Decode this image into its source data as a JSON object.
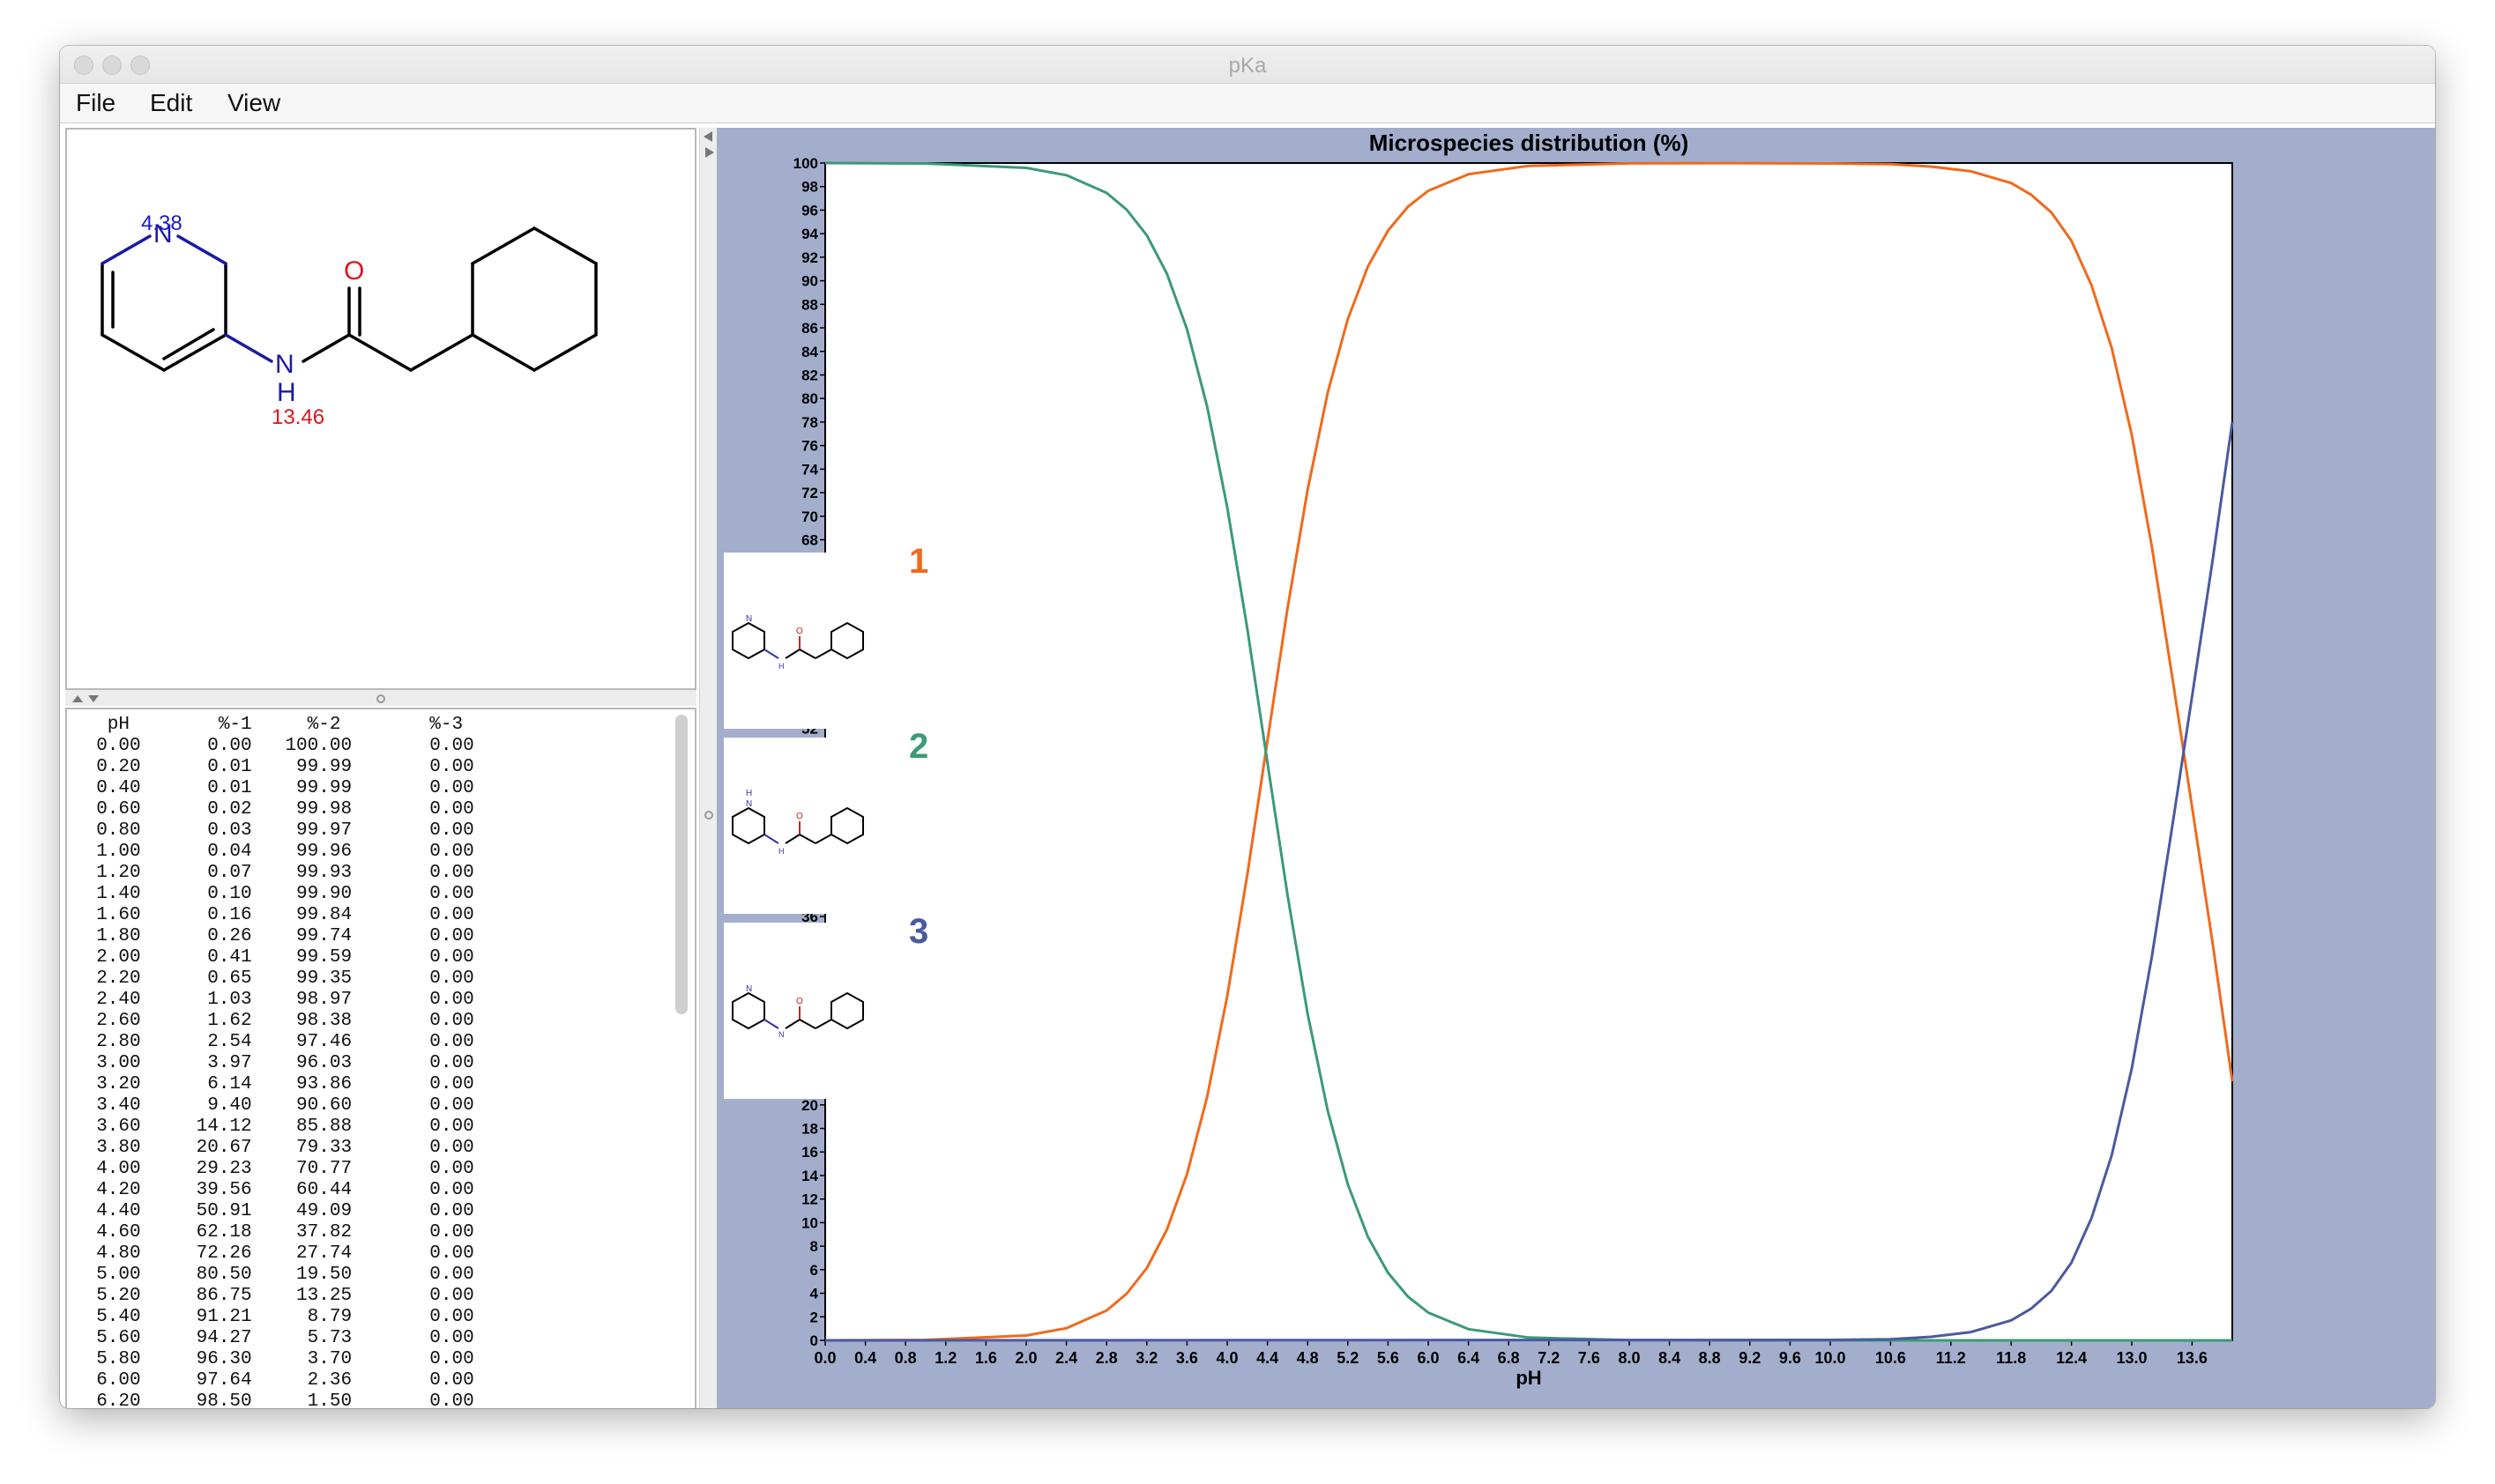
{
  "window": {
    "title": "pKa"
  },
  "menu": {
    "file": "File",
    "edit": "Edit",
    "view": "View"
  },
  "molecule": {
    "pka_n_ring": "4.38",
    "pka_nh": "13.46",
    "atom_n": "N",
    "atom_o": "O",
    "atom_h": "H"
  },
  "table": {
    "headers": [
      "pH",
      "%-1",
      "%-2",
      "%-3"
    ],
    "rows": [
      [
        "0.00",
        "0.00",
        "100.00",
        "0.00"
      ],
      [
        "0.20",
        "0.01",
        "99.99",
        "0.00"
      ],
      [
        "0.40",
        "0.01",
        "99.99",
        "0.00"
      ],
      [
        "0.60",
        "0.02",
        "99.98",
        "0.00"
      ],
      [
        "0.80",
        "0.03",
        "99.97",
        "0.00"
      ],
      [
        "1.00",
        "0.04",
        "99.96",
        "0.00"
      ],
      [
        "1.20",
        "0.07",
        "99.93",
        "0.00"
      ],
      [
        "1.40",
        "0.10",
        "99.90",
        "0.00"
      ],
      [
        "1.60",
        "0.16",
        "99.84",
        "0.00"
      ],
      [
        "1.80",
        "0.26",
        "99.74",
        "0.00"
      ],
      [
        "2.00",
        "0.41",
        "99.59",
        "0.00"
      ],
      [
        "2.20",
        "0.65",
        "99.35",
        "0.00"
      ],
      [
        "2.40",
        "1.03",
        "98.97",
        "0.00"
      ],
      [
        "2.60",
        "1.62",
        "98.38",
        "0.00"
      ],
      [
        "2.80",
        "2.54",
        "97.46",
        "0.00"
      ],
      [
        "3.00",
        "3.97",
        "96.03",
        "0.00"
      ],
      [
        "3.20",
        "6.14",
        "93.86",
        "0.00"
      ],
      [
        "3.40",
        "9.40",
        "90.60",
        "0.00"
      ],
      [
        "3.60",
        "14.12",
        "85.88",
        "0.00"
      ],
      [
        "3.80",
        "20.67",
        "79.33",
        "0.00"
      ],
      [
        "4.00",
        "29.23",
        "70.77",
        "0.00"
      ],
      [
        "4.20",
        "39.56",
        "60.44",
        "0.00"
      ],
      [
        "4.40",
        "50.91",
        "49.09",
        "0.00"
      ],
      [
        "4.60",
        "62.18",
        "37.82",
        "0.00"
      ],
      [
        "4.80",
        "72.26",
        "27.74",
        "0.00"
      ],
      [
        "5.00",
        "80.50",
        "19.50",
        "0.00"
      ],
      [
        "5.20",
        "86.75",
        "13.25",
        "0.00"
      ],
      [
        "5.40",
        "91.21",
        "8.79",
        "0.00"
      ],
      [
        "5.60",
        "94.27",
        "5.73",
        "0.00"
      ],
      [
        "5.80",
        "96.30",
        "3.70",
        "0.00"
      ],
      [
        "6.00",
        "97.64",
        "2.36",
        "0.00"
      ]
    ],
    "partial_row": [
      "6.20",
      "98.50",
      "1.50",
      "0.00"
    ]
  },
  "species": [
    {
      "label": "1",
      "color": "#f06a1c"
    },
    {
      "label": "2",
      "color": "#3c9a74"
    },
    {
      "label": "3",
      "color": "#4a5aa0"
    }
  ],
  "chart_data": {
    "type": "line",
    "title": "Microspecies distribution (%)",
    "xlabel": "pH",
    "ylabel": "",
    "xlim": [
      0,
      14
    ],
    "ylim": [
      0,
      100
    ],
    "x_ticks": [
      "0.0",
      "0.4",
      "0.8",
      "1.2",
      "1.6",
      "2.0",
      "2.4",
      "2.8",
      "3.2",
      "3.6",
      "4.0",
      "4.4",
      "4.8",
      "5.2",
      "5.6",
      "6.0",
      "6.4",
      "6.8",
      "7.2",
      "7.6",
      "8.0",
      "8.4",
      "8.8",
      "9.2",
      "9.6",
      "10.0",
      "10.6",
      "11.2",
      "11.8",
      "12.4",
      "13.0",
      "13.6"
    ],
    "x_tick_values": [
      0.0,
      0.4,
      0.8,
      1.2,
      1.6,
      2.0,
      2.4,
      2.8,
      3.2,
      3.6,
      4.0,
      4.4,
      4.8,
      5.2,
      5.6,
      6.0,
      6.4,
      6.8,
      7.2,
      7.6,
      8.0,
      8.4,
      8.8,
      9.2,
      9.6,
      10.0,
      10.6,
      11.2,
      11.8,
      12.4,
      13.0,
      13.6
    ],
    "y_step": 2,
    "grid": false,
    "series": [
      {
        "name": "1",
        "color": "#f06a1c",
        "x": [
          0,
          1,
          2,
          2.4,
          2.8,
          3.0,
          3.2,
          3.4,
          3.6,
          3.8,
          4.0,
          4.2,
          4.4,
          4.6,
          4.8,
          5.0,
          5.2,
          5.4,
          5.6,
          5.8,
          6.0,
          6.4,
          7.0,
          8,
          9,
          10,
          10.6,
          11.0,
          11.4,
          11.8,
          12.0,
          12.2,
          12.4,
          12.6,
          12.8,
          13.0,
          13.2,
          13.4,
          13.6,
          13.8,
          14.0
        ],
        "y": [
          0,
          0.04,
          0.41,
          1.03,
          2.54,
          3.97,
          6.14,
          9.4,
          14.12,
          20.67,
          29.23,
          39.56,
          50.91,
          62.18,
          72.26,
          80.5,
          86.75,
          91.21,
          94.27,
          96.3,
          97.64,
          99.05,
          99.76,
          99.97,
          99.99,
          99.96,
          99.9,
          99.7,
          99.3,
          98.3,
          97.3,
          95.8,
          93.4,
          89.6,
          84.3,
          76.9,
          67.4,
          56.5,
          45.3,
          34.0,
          22.0
        ]
      },
      {
        "name": "2",
        "color": "#3c9a74",
        "x": [
          0,
          1,
          2,
          2.4,
          2.8,
          3.0,
          3.2,
          3.4,
          3.6,
          3.8,
          4.0,
          4.2,
          4.4,
          4.6,
          4.8,
          5.0,
          5.2,
          5.4,
          5.6,
          5.8,
          6.0,
          6.4,
          7.0,
          8,
          9,
          10,
          14
        ],
        "y": [
          100,
          99.96,
          99.59,
          98.97,
          97.46,
          96.03,
          93.86,
          90.6,
          85.88,
          79.33,
          70.77,
          60.44,
          49.09,
          37.82,
          27.74,
          19.5,
          13.25,
          8.79,
          5.73,
          3.7,
          2.36,
          0.95,
          0.24,
          0.02,
          0,
          0,
          0
        ]
      },
      {
        "name": "3",
        "color": "#4a5aa0",
        "x": [
          0,
          10,
          10.6,
          11.0,
          11.4,
          11.8,
          12.0,
          12.2,
          12.4,
          12.6,
          12.8,
          13.0,
          13.2,
          13.4,
          13.6,
          13.8,
          14.0
        ],
        "y": [
          0,
          0.04,
          0.1,
          0.3,
          0.7,
          1.7,
          2.7,
          4.2,
          6.6,
          10.4,
          15.7,
          23.1,
          32.6,
          43.5,
          54.7,
          66.0,
          78.0
        ]
      }
    ]
  }
}
